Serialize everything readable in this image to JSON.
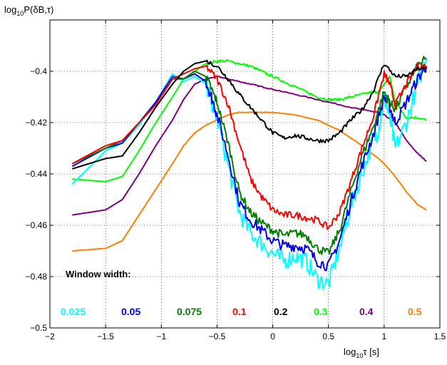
{
  "chart_data": {
    "type": "line",
    "title": "",
    "ylabel": {
      "base": "log",
      "subscript": "10",
      "rest": "P(δB,τ)"
    },
    "xlabel": {
      "base": "log",
      "subscript": "10",
      "rest": "τ  [s]"
    },
    "xlim": [
      -2,
      1.5
    ],
    "ylim": [
      -0.5,
      -0.38
    ],
    "xticks": [
      -2,
      -1.5,
      -1,
      -0.5,
      0,
      0.5,
      1,
      1.5
    ],
    "xtick_labels": [
      "−2",
      "−1.5",
      "−1",
      "−0.5",
      "0",
      "0.5",
      "1",
      "1.5"
    ],
    "yticks": [
      -0.5,
      -0.48,
      -0.46,
      -0.44,
      -0.42,
      -0.4
    ],
    "ytick_labels": [
      "−0.5",
      "−0.48",
      "−0.46",
      "−0.44",
      "−0.42",
      "−0.4"
    ],
    "grid": true,
    "legend_title": "Window width:",
    "legend_position": "bottom",
    "series": [
      {
        "name": "0.025",
        "color": "#00ffff",
        "noise": 0.0035,
        "x": [
          -1.8,
          -1.5,
          -1.35,
          -1.2,
          -1.05,
          -0.9,
          -0.8,
          -0.7,
          -0.6,
          -0.55,
          -0.5,
          -0.4,
          -0.3,
          -0.2,
          -0.1,
          0,
          0.1,
          0.2,
          0.3,
          0.4,
          0.5,
          0.6,
          0.7,
          0.8,
          0.9,
          0.95,
          1.0,
          1.05,
          1.1,
          1.2,
          1.3,
          1.38
        ],
        "y": [
          -0.444,
          -0.431,
          -0.428,
          -0.421,
          -0.412,
          -0.401,
          -0.404,
          -0.402,
          -0.405,
          -0.412,
          -0.418,
          -0.437,
          -0.455,
          -0.463,
          -0.467,
          -0.471,
          -0.474,
          -0.472,
          -0.474,
          -0.481,
          -0.483,
          -0.469,
          -0.453,
          -0.44,
          -0.427,
          -0.423,
          -0.41,
          -0.418,
          -0.43,
          -0.42,
          -0.405,
          -0.395
        ]
      },
      {
        "name": "0.05",
        "color": "#0000ee",
        "noise": 0.0022,
        "x": [
          -1.8,
          -1.5,
          -1.35,
          -1.2,
          -1.05,
          -0.9,
          -0.8,
          -0.7,
          -0.6,
          -0.55,
          -0.5,
          -0.4,
          -0.3,
          -0.2,
          -0.1,
          0,
          0.1,
          0.2,
          0.3,
          0.4,
          0.5,
          0.6,
          0.7,
          0.8,
          0.9,
          1.0,
          1.05,
          1.1,
          1.2,
          1.3,
          1.38
        ],
        "y": [
          -0.437,
          -0.43,
          -0.428,
          -0.42,
          -0.412,
          -0.402,
          -0.403,
          -0.401,
          -0.404,
          -0.41,
          -0.417,
          -0.433,
          -0.451,
          -0.458,
          -0.462,
          -0.466,
          -0.468,
          -0.468,
          -0.469,
          -0.474,
          -0.476,
          -0.466,
          -0.451,
          -0.437,
          -0.425,
          -0.41,
          -0.414,
          -0.42,
          -0.412,
          -0.403,
          -0.398
        ]
      },
      {
        "name": "0.075",
        "color": "#007f00",
        "noise": 0.0017,
        "x": [
          -1.8,
          -1.5,
          -1.35,
          -1.2,
          -1.05,
          -0.9,
          -0.8,
          -0.7,
          -0.6,
          -0.55,
          -0.5,
          -0.4,
          -0.3,
          -0.2,
          -0.1,
          0,
          0.1,
          0.2,
          0.3,
          0.4,
          0.5,
          0.6,
          0.7,
          0.8,
          0.9,
          1.0,
          1.05,
          1.1,
          1.2,
          1.3,
          1.38
        ],
        "y": [
          -0.436,
          -0.43,
          -0.427,
          -0.42,
          -0.413,
          -0.403,
          -0.403,
          -0.4,
          -0.402,
          -0.407,
          -0.412,
          -0.428,
          -0.447,
          -0.455,
          -0.459,
          -0.462,
          -0.464,
          -0.463,
          -0.464,
          -0.469,
          -0.471,
          -0.462,
          -0.447,
          -0.433,
          -0.422,
          -0.408,
          -0.412,
          -0.415,
          -0.406,
          -0.398,
          -0.395
        ]
      },
      {
        "name": "0.1",
        "color": "#ff0000",
        "noise": 0.0014,
        "x": [
          -1.8,
          -1.5,
          -1.35,
          -1.2,
          -1.05,
          -0.9,
          -0.8,
          -0.7,
          -0.6,
          -0.5,
          -0.4,
          -0.3,
          -0.2,
          -0.1,
          0,
          0.1,
          0.2,
          0.3,
          0.4,
          0.5,
          0.6,
          0.7,
          0.8,
          0.9,
          1.0,
          1.05,
          1.1,
          1.2,
          1.3,
          1.38
        ],
        "y": [
          -0.436,
          -0.429,
          -0.427,
          -0.42,
          -0.413,
          -0.403,
          -0.401,
          -0.399,
          -0.398,
          -0.403,
          -0.413,
          -0.428,
          -0.442,
          -0.449,
          -0.454,
          -0.456,
          -0.456,
          -0.457,
          -0.458,
          -0.461,
          -0.455,
          -0.443,
          -0.43,
          -0.418,
          -0.401,
          -0.405,
          -0.413,
          -0.405,
          -0.398,
          -0.398
        ]
      },
      {
        "name": "0.2",
        "color": "#000000",
        "noise": 0.0008,
        "x": [
          -1.8,
          -1.5,
          -1.35,
          -1.2,
          -1.05,
          -0.9,
          -0.8,
          -0.7,
          -0.6,
          -0.5,
          -0.4,
          -0.3,
          -0.2,
          -0.1,
          0,
          0.1,
          0.2,
          0.3,
          0.4,
          0.5,
          0.6,
          0.7,
          0.8,
          0.9,
          1.0,
          1.1,
          1.2,
          1.3,
          1.38
        ],
        "y": [
          -0.438,
          -0.434,
          -0.433,
          -0.424,
          -0.414,
          -0.405,
          -0.4,
          -0.397,
          -0.396,
          -0.398,
          -0.403,
          -0.409,
          -0.414,
          -0.419,
          -0.424,
          -0.426,
          -0.425,
          -0.426,
          -0.427,
          -0.427,
          -0.424,
          -0.419,
          -0.415,
          -0.408,
          -0.397,
          -0.402,
          -0.402,
          -0.399,
          -0.399
        ]
      },
      {
        "name": "0.3",
        "color": "#00ff00",
        "noise": 0.0005,
        "x": [
          -1.8,
          -1.5,
          -1.35,
          -1.2,
          -1.05,
          -0.9,
          -0.8,
          -0.7,
          -0.6,
          -0.5,
          -0.4,
          -0.3,
          -0.2,
          -0.1,
          0,
          0.1,
          0.2,
          0.3,
          0.4,
          0.5,
          0.6,
          0.7,
          0.8,
          0.9,
          0.95,
          1.0,
          1.05,
          1.1,
          1.2,
          1.3,
          1.38
        ],
        "y": [
          -0.442,
          -0.443,
          -0.441,
          -0.431,
          -0.42,
          -0.41,
          -0.403,
          -0.4,
          -0.397,
          -0.396,
          -0.396,
          -0.397,
          -0.398,
          -0.4,
          -0.402,
          -0.404,
          -0.406,
          -0.408,
          -0.41,
          -0.411,
          -0.411,
          -0.41,
          -0.409,
          -0.408,
          -0.408,
          -0.405,
          -0.402,
          -0.412,
          -0.418,
          -0.418,
          -0.419
        ]
      },
      {
        "name": "0.4",
        "color": "#800080",
        "noise": 0.0002,
        "x": [
          -1.8,
          -1.5,
          -1.35,
          -1.2,
          -1.05,
          -0.9,
          -0.8,
          -0.7,
          -0.6,
          -0.5,
          -0.4,
          -0.3,
          -0.2,
          -0.1,
          0,
          0.2,
          0.4,
          0.6,
          0.8,
          0.95,
          1.0,
          1.1,
          1.2,
          1.3,
          1.38
        ],
        "y": [
          -0.456,
          -0.454,
          -0.45,
          -0.44,
          -0.429,
          -0.419,
          -0.411,
          -0.405,
          -0.403,
          -0.402,
          -0.403,
          -0.404,
          -0.405,
          -0.406,
          -0.407,
          -0.409,
          -0.411,
          -0.413,
          -0.415,
          -0.416,
          -0.417,
          -0.42,
          -0.427,
          -0.432,
          -0.435
        ]
      },
      {
        "name": "0.5",
        "color": "#ff7f00",
        "noise": 0.0001,
        "x": [
          -1.8,
          -1.5,
          -1.35,
          -1.2,
          -1.05,
          -0.9,
          -0.8,
          -0.7,
          -0.6,
          -0.5,
          -0.4,
          -0.3,
          -0.2,
          -0.1,
          0,
          0.2,
          0.4,
          0.6,
          0.8,
          0.95,
          1.0,
          1.1,
          1.2,
          1.3,
          1.38
        ],
        "y": [
          -0.47,
          -0.469,
          -0.466,
          -0.456,
          -0.446,
          -0.436,
          -0.429,
          -0.424,
          -0.421,
          -0.419,
          -0.417,
          -0.416,
          -0.416,
          -0.416,
          -0.416,
          -0.417,
          -0.419,
          -0.423,
          -0.429,
          -0.434,
          -0.436,
          -0.441,
          -0.447,
          -0.452,
          -0.454
        ]
      }
    ]
  }
}
